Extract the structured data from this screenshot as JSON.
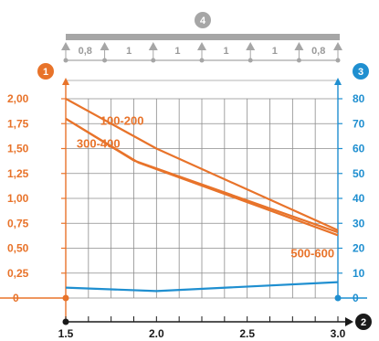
{
  "colors": {
    "orange": "#e8732a",
    "blue": "#1f8fd0",
    "grey": "#a6a6a6",
    "grid": "#8c8c8c",
    "dark": "#1a1a1a"
  },
  "badges": {
    "left_axis": "1",
    "x_axis": "2",
    "right_axis": "3",
    "beam": "4"
  },
  "beam_spans": [
    "0,8",
    "1",
    "1",
    "1",
    "1",
    "0,8"
  ],
  "chart_data": {
    "type": "line",
    "x_ticks": [
      "1.5",
      "2.0",
      "2.5",
      "3.0"
    ],
    "x_range": [
      1.5,
      3.0
    ],
    "x_grid_step": 0.125,
    "left_axis": {
      "range": [
        0,
        2.0
      ],
      "ticks": [
        "0",
        "0,25",
        "0,50",
        "0,75",
        "1,00",
        "1,25",
        "1,50",
        "1,75",
        "2,00"
      ]
    },
    "right_axis": {
      "range": [
        0,
        80
      ],
      "ticks": [
        "0",
        "10",
        "20",
        "30",
        "40",
        "50",
        "60",
        "70",
        "80"
      ]
    },
    "series": [
      {
        "name": "100-200",
        "axis": "left",
        "color": "#e8732a",
        "points": [
          [
            1.5,
            2.0
          ],
          [
            2.0,
            1.5
          ],
          [
            3.0,
            0.68
          ]
        ]
      },
      {
        "name": "300-400",
        "axis": "left",
        "color": "#e8732a",
        "points": [
          [
            1.5,
            1.8
          ],
          [
            1.875,
            1.38
          ],
          [
            3.0,
            0.66
          ]
        ]
      },
      {
        "name": "500-600",
        "axis": "left",
        "color": "#e8732a",
        "points": [
          [
            1.5,
            1.8
          ],
          [
            1.9,
            1.36
          ],
          [
            3.0,
            0.63
          ]
        ]
      },
      {
        "name": "",
        "axis": "right",
        "color": "#1f8fd0",
        "points": [
          [
            1.5,
            4.2
          ],
          [
            2.0,
            2.8
          ],
          [
            3.0,
            6.4
          ]
        ]
      }
    ],
    "labels": [
      {
        "text": "100-200",
        "x": 1.69,
        "y": 1.74
      },
      {
        "text": "300-400",
        "x": 1.56,
        "y": 1.51
      },
      {
        "text": "500-600",
        "x": 2.74,
        "y": 0.41
      }
    ],
    "grid": true
  }
}
